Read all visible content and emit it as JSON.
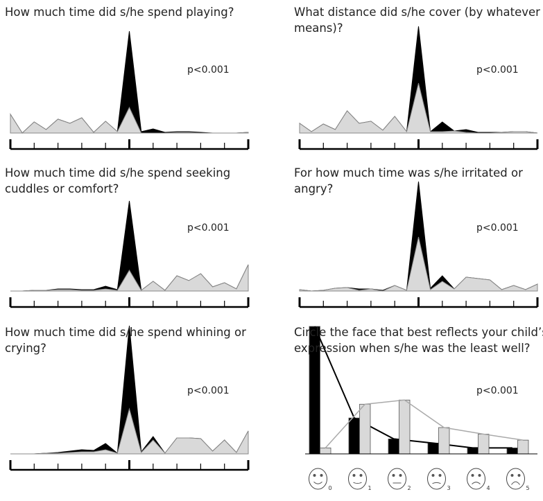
{
  "chart_data": [
    {
      "type": "area",
      "title": "How much time did s/he spend playing?",
      "annotation": "p<0.001",
      "ylim": [
        0,
        190
      ],
      "series": [
        {
          "color": "#000000",
          "values": [
            27,
            0,
            16,
            5,
            20,
            14,
            22,
            1,
            17,
            2,
            147,
            2,
            6,
            1,
            2,
            2,
            1,
            0,
            0,
            0,
            1
          ]
        },
        {
          "color": "#d9d9d9",
          "values": [
            27,
            0,
            16,
            5,
            20,
            14,
            22,
            1,
            17,
            2,
            37,
            0,
            0,
            0,
            1,
            1,
            0,
            0,
            0,
            0,
            1
          ]
        }
      ]
    },
    {
      "type": "area",
      "title": "What distance did s/he cover (by whatever means)?",
      "annotation": "p<0.001",
      "ylim": [
        0,
        190
      ],
      "series": [
        {
          "color": "#000000",
          "values": [
            14,
            2,
            13,
            5,
            32,
            14,
            17,
            4,
            24,
            2,
            154,
            2,
            16,
            3,
            5,
            1,
            1,
            1,
            2,
            2,
            0
          ]
        },
        {
          "color": "#d9d9d9",
          "values": [
            14,
            2,
            13,
            5,
            32,
            14,
            17,
            4,
            24,
            2,
            72,
            2,
            2,
            3,
            1,
            0,
            0,
            1,
            2,
            2,
            0
          ]
        }
      ]
    },
    {
      "type": "area",
      "title": "How much time did s/he spend seeking cuddles or comfort?",
      "annotation": "p<0.001",
      "ylim": [
        0,
        190
      ],
      "series": [
        {
          "color": "#000000",
          "values": [
            0,
            0,
            1,
            1,
            3,
            3,
            2,
            2,
            7,
            2,
            130,
            1,
            14,
            1,
            22,
            15,
            25,
            6,
            12,
            3,
            38
          ]
        },
        {
          "color": "#d9d9d9",
          "values": [
            0,
            0,
            1,
            1,
            2,
            2,
            1,
            1,
            3,
            1,
            30,
            1,
            14,
            1,
            22,
            15,
            25,
            6,
            12,
            3,
            38
          ]
        }
      ]
    },
    {
      "type": "area",
      "title": "For how much time was s/he irritated or angry?",
      "annotation": "p<0.001",
      "ylim": [
        0,
        190
      ],
      "series": [
        {
          "color": "#000000",
          "values": [
            2,
            0,
            1,
            4,
            5,
            3,
            3,
            1,
            8,
            1,
            158,
            4,
            22,
            3,
            20,
            18,
            16,
            2,
            8,
            2,
            10
          ]
        },
        {
          "color": "#d9d9d9",
          "values": [
            2,
            0,
            1,
            4,
            5,
            1,
            3,
            0,
            8,
            1,
            78,
            2,
            14,
            3,
            20,
            18,
            16,
            2,
            8,
            2,
            10
          ]
        }
      ]
    },
    {
      "type": "area",
      "title": "How much time did s/he spend whining or crying?",
      "annotation": "p<0.001",
      "ylim": [
        0,
        190
      ],
      "series": [
        {
          "color": "#000000",
          "values": [
            0,
            0,
            0,
            1,
            2,
            4,
            6,
            5,
            15,
            1,
            185,
            3,
            25,
            1,
            23,
            23,
            22,
            4,
            20,
            2,
            33
          ]
        },
        {
          "color": "#d9d9d9",
          "values": [
            0,
            0,
            0,
            1,
            1,
            2,
            3,
            3,
            6,
            1,
            65,
            2,
            20,
            1,
            23,
            23,
            22,
            4,
            20,
            2,
            33
          ]
        }
      ]
    },
    {
      "type": "bar",
      "title": "Circle the face that best reflects your child’s expression when s/he was the least well?",
      "annotation": "p<0.001",
      "ylim": [
        0,
        220
      ],
      "categories": [
        "0",
        "1",
        "2",
        "3",
        "4",
        "5"
      ],
      "series": [
        {
          "color": "#000000",
          "values": [
            213,
            60,
            25,
            18,
            10,
            10
          ]
        },
        {
          "color": "#d9d9d9",
          "values": [
            10,
            83,
            90,
            44,
            33,
            23
          ]
        }
      ]
    }
  ]
}
